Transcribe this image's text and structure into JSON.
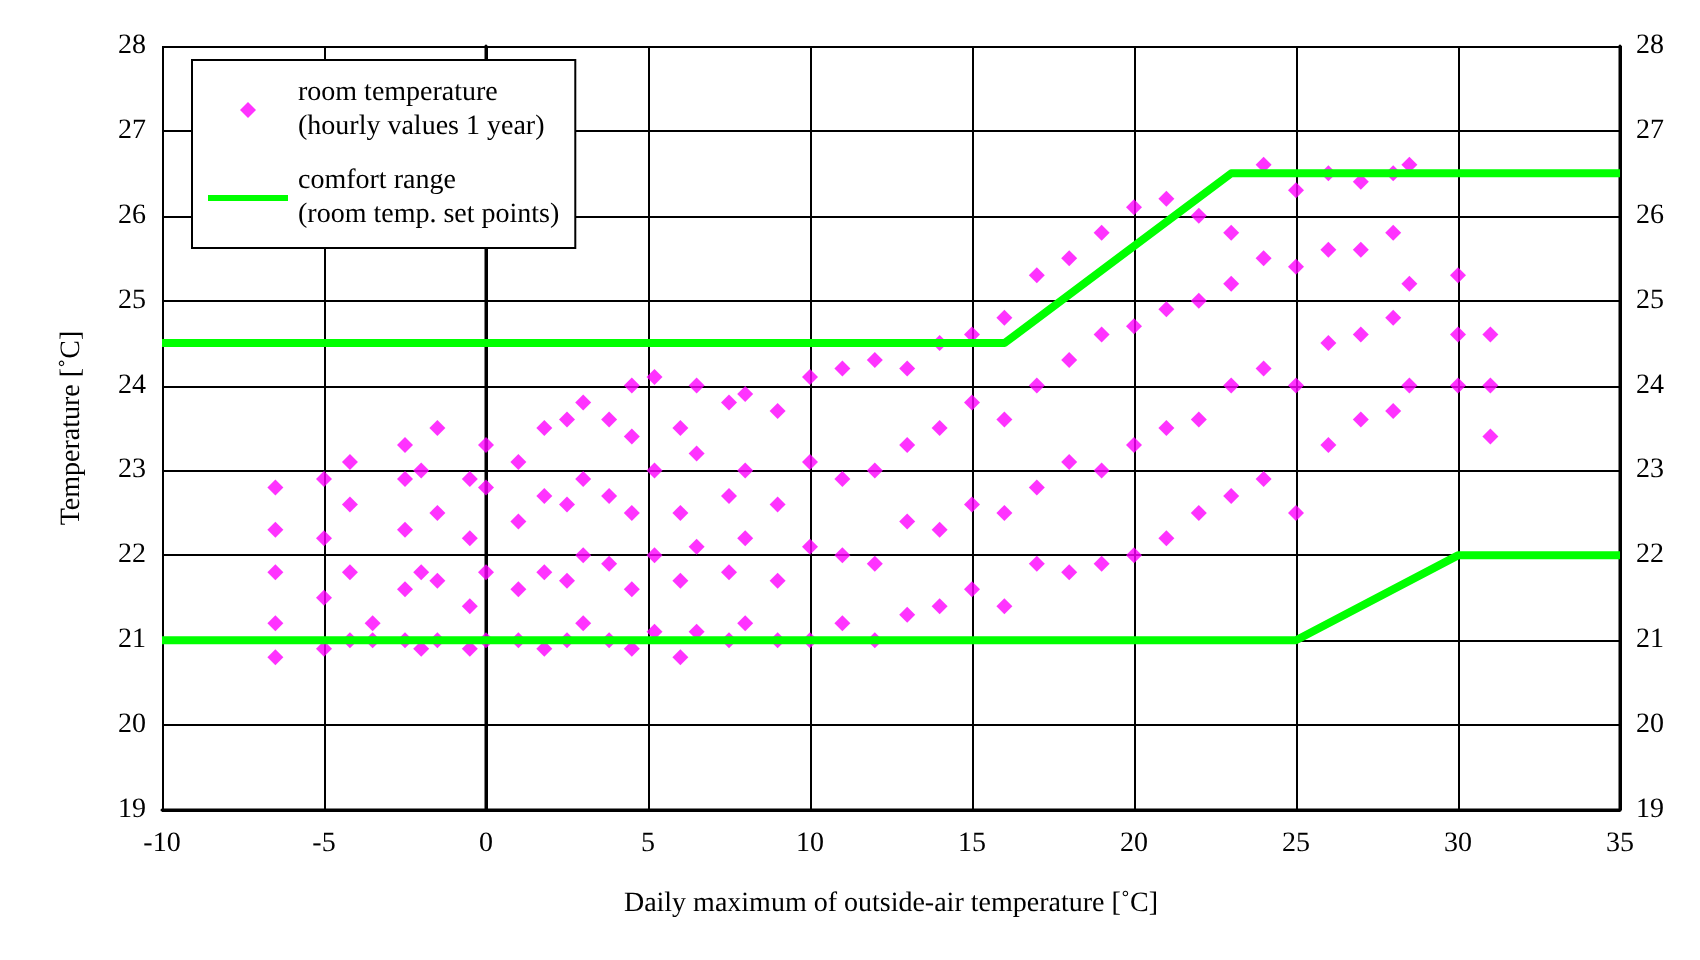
{
  "chart_data": {
    "type": "scatter",
    "xlabel": "Daily maximum of outside-air temperature [˚C]",
    "ylabel": "Temperature [˚C]",
    "xlim": [
      -10,
      35
    ],
    "xticks": [
      -10,
      -5,
      0,
      5,
      10,
      15,
      20,
      25,
      30,
      35
    ],
    "ylim": [
      19,
      28
    ],
    "yticks": [
      19,
      20,
      21,
      22,
      23,
      24,
      25,
      26,
      27,
      28
    ],
    "y2lim": [
      19,
      28
    ],
    "y2ticks": [
      19,
      20,
      21,
      22,
      23,
      24,
      25,
      26,
      27,
      28
    ],
    "grid": true,
    "legend": "top left",
    "series": [
      {
        "name": "room temperature\n(hourly values 1 year)",
        "marker": "diamond",
        "color": "#ff00ff",
        "x": [
          -6.5,
          -6.5,
          -6.5,
          -6.5,
          -6.5,
          -5,
          -5,
          -5,
          -5,
          -4.2,
          -4.2,
          -4.2,
          -4.2,
          -3.5,
          -3.5,
          -2.5,
          -2.5,
          -2.5,
          -2.5,
          -2.5,
          -2,
          -2,
          -2,
          -1.5,
          -1.5,
          -1.5,
          -1.5,
          -0.5,
          -0.5,
          -0.5,
          -0.5,
          0,
          0,
          0,
          0,
          1,
          1,
          1,
          1,
          1.8,
          1.8,
          1.8,
          1.8,
          2.5,
          2.5,
          2.5,
          2.5,
          3,
          3,
          3,
          3,
          3.8,
          3.8,
          3.8,
          3.8,
          4.5,
          4.5,
          4.5,
          4.5,
          4.5,
          5.2,
          5.2,
          5.2,
          5.2,
          6,
          6,
          6,
          6,
          6.5,
          6.5,
          6.5,
          6.5,
          7.5,
          7.5,
          7.5,
          7.5,
          8,
          8,
          8,
          8,
          9,
          9,
          9,
          9,
          10,
          10,
          10,
          10,
          11,
          11,
          11,
          11,
          12,
          12,
          12,
          12,
          13,
          13,
          13,
          13,
          14,
          14,
          14,
          14,
          15,
          15,
          15,
          15,
          16,
          16,
          16,
          16,
          17,
          17,
          17,
          17,
          18,
          18,
          18,
          18,
          19,
          19,
          19,
          19,
          20,
          20,
          20,
          20,
          21,
          21,
          21,
          21,
          22,
          22,
          22,
          22,
          23,
          23,
          23,
          23,
          24,
          24,
          24,
          24,
          25,
          25,
          25,
          25,
          26,
          26,
          26,
          26,
          27,
          27,
          27,
          27,
          28,
          28,
          28,
          28,
          28.5,
          28.5,
          28.5,
          30,
          30,
          30,
          31,
          31,
          31
        ],
        "values": [
          20.8,
          21.2,
          21.8,
          22.3,
          22.8,
          20.9,
          21.5,
          22.2,
          22.9,
          21.0,
          21.8,
          22.6,
          23.1,
          21.0,
          21.2,
          21.0,
          21.6,
          22.3,
          22.9,
          23.3,
          20.9,
          21.8,
          23.0,
          21.0,
          21.7,
          22.5,
          23.5,
          20.9,
          21.4,
          22.2,
          22.9,
          21.0,
          21.8,
          22.8,
          23.3,
          21.0,
          21.6,
          22.4,
          23.1,
          20.9,
          21.8,
          22.7,
          23.5,
          21.0,
          21.7,
          22.6,
          23.6,
          21.2,
          22.0,
          22.9,
          23.8,
          21.0,
          21.9,
          22.7,
          23.6,
          20.9,
          21.6,
          22.5,
          23.4,
          24.0,
          21.1,
          22.0,
          23.0,
          24.1,
          20.8,
          21.7,
          22.5,
          23.5,
          21.1,
          22.1,
          23.2,
          24.0,
          21.0,
          21.8,
          22.7,
          23.8,
          21.2,
          22.2,
          23.0,
          23.9,
          21.0,
          21.7,
          22.6,
          23.7,
          21.0,
          22.1,
          23.1,
          24.1,
          21.2,
          22.0,
          22.9,
          24.2,
          21.0,
          21.9,
          23.0,
          24.3,
          21.3,
          22.4,
          23.3,
          24.2,
          21.4,
          22.3,
          23.5,
          24.5,
          21.6,
          22.6,
          23.8,
          24.6,
          21.4,
          22.5,
          23.6,
          24.8,
          21.9,
          22.8,
          24.0,
          25.3,
          21.8,
          23.1,
          24.3,
          25.5,
          21.9,
          23.0,
          24.6,
          25.8,
          22.0,
          23.3,
          24.7,
          26.1,
          22.2,
          23.5,
          24.9,
          26.2,
          22.5,
          23.6,
          25.0,
          26.0,
          22.7,
          24.0,
          25.2,
          25.8,
          22.9,
          24.2,
          25.5,
          26.6,
          22.5,
          24.0,
          25.4,
          26.3,
          23.3,
          24.5,
          25.6,
          26.5,
          23.6,
          24.6,
          25.6,
          26.4,
          23.7,
          24.8,
          25.8,
          26.5,
          24.0,
          25.2,
          26.6,
          24.0,
          24.6,
          25.3,
          23.4,
          24.0,
          24.6
        ]
      },
      {
        "name": "comfort range\n(room temp. set points)",
        "type": "line",
        "marker": "none",
        "color": "#00ff00",
        "x": [
          -10,
          16,
          23,
          35
        ],
        "values": [
          24.5,
          24.5,
          26.5,
          26.5
        ]
      },
      {
        "type": "line",
        "marker": "none",
        "color": "#00ff00",
        "x": [
          -10,
          25,
          30,
          35
        ],
        "values": [
          21,
          21,
          22,
          22
        ]
      }
    ]
  }
}
